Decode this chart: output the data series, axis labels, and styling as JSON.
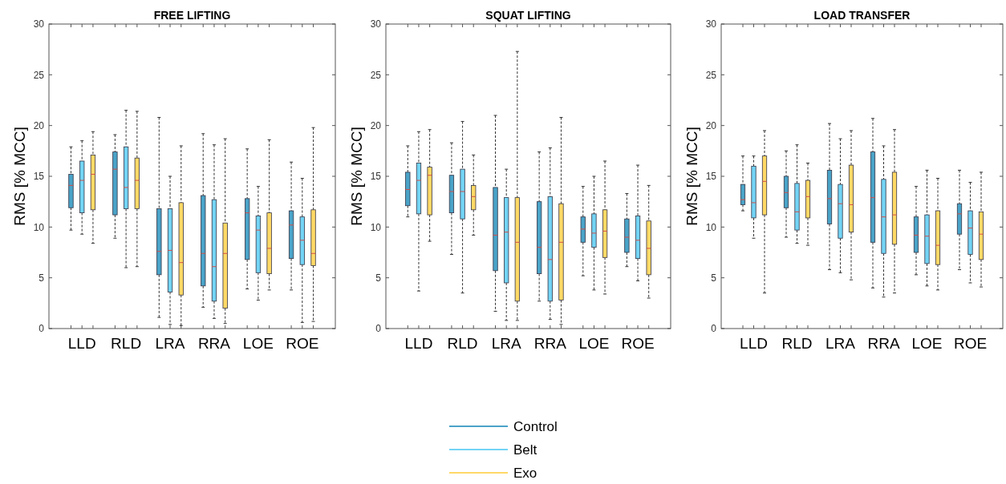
{
  "chart_data": [
    {
      "type": "box",
      "title": "FREE LIFTING",
      "ylabel": "RMS [% MCC]",
      "categories": [
        "LLD",
        "RLD",
        "LRA",
        "RRA",
        "LOE",
        "ROE"
      ],
      "ylim": [
        0,
        30
      ],
      "yticks": [
        0,
        5,
        10,
        15,
        20,
        25,
        30
      ],
      "grid": false,
      "legend": "bottom",
      "series": [
        {
          "name": "Control",
          "color": "#4aa3c8",
          "boxes": [
            {
              "low": 9.7,
              "q1": 11.9,
              "median": 14.1,
              "q3": 15.2,
              "high": 17.9
            },
            {
              "low": 8.9,
              "q1": 11.2,
              "median": 15.7,
              "q3": 17.4,
              "high": 19.1
            },
            {
              "low": 1.1,
              "q1": 5.3,
              "median": 7.6,
              "q3": 11.8,
              "high": 20.8
            },
            {
              "low": 2.1,
              "q1": 4.2,
              "median": 7.4,
              "q3": 13.1,
              "high": 19.2
            },
            {
              "low": 3.9,
              "q1": 6.8,
              "median": 11.4,
              "q3": 12.8,
              "high": 17.7
            },
            {
              "low": 3.8,
              "q1": 6.9,
              "median": 10.2,
              "q3": 11.6,
              "high": 16.4
            }
          ]
        },
        {
          "name": "Belt",
          "color": "#73d4f5",
          "boxes": [
            {
              "low": 9.3,
              "q1": 11.4,
              "median": 14.6,
              "q3": 16.5,
              "high": 18.5
            },
            {
              "low": 6.0,
              "q1": 11.8,
              "median": 13.9,
              "q3": 17.9,
              "high": 21.5
            },
            {
              "low": 0.4,
              "q1": 3.6,
              "median": 7.7,
              "q3": 11.8,
              "high": 15.0
            },
            {
              "low": 1.0,
              "q1": 2.7,
              "median": 6.1,
              "q3": 12.7,
              "high": 18.1
            },
            {
              "low": 2.8,
              "q1": 5.5,
              "median": 9.7,
              "q3": 11.1,
              "high": 14.0
            },
            {
              "low": 0.6,
              "q1": 6.3,
              "median": 8.7,
              "q3": 11.0,
              "high": 14.8
            }
          ]
        },
        {
          "name": "Exo",
          "color": "#ffd966",
          "boxes": [
            {
              "low": 8.4,
              "q1": 11.7,
              "median": 15.2,
              "q3": 17.1,
              "high": 19.4
            },
            {
              "low": 6.1,
              "q1": 11.8,
              "median": 14.6,
              "q3": 16.8,
              "high": 21.4
            },
            {
              "low": 0.3,
              "q1": 3.3,
              "median": 6.5,
              "q3": 12.4,
              "high": 18.0
            },
            {
              "low": 0.5,
              "q1": 2.0,
              "median": 7.4,
              "q3": 10.4,
              "high": 18.7
            },
            {
              "low": 3.8,
              "q1": 5.4,
              "median": 7.9,
              "q3": 11.4,
              "high": 18.6
            },
            {
              "low": 0.7,
              "q1": 6.2,
              "median": 7.4,
              "q3": 11.7,
              "high": 19.8
            }
          ]
        }
      ]
    },
    {
      "type": "box",
      "title": "SQUAT LIFTING",
      "ylabel": "RMS [% MCC]",
      "categories": [
        "LLD",
        "RLD",
        "LRA",
        "RRA",
        "LOE",
        "ROE"
      ],
      "ylim": [
        0,
        30
      ],
      "yticks": [
        0,
        5,
        10,
        15,
        20,
        25,
        30
      ],
      "grid": false,
      "series": [
        {
          "color": "#4aa3c8",
          "boxes": [
            {
              "low": 11.0,
              "q1": 12.1,
              "median": 13.7,
              "q3": 15.4,
              "high": 18.0
            },
            {
              "low": 7.3,
              "q1": 11.4,
              "median": 13.5,
              "q3": 15.1,
              "high": 18.3
            },
            {
              "low": 1.7,
              "q1": 5.7,
              "median": 9.2,
              "q3": 13.9,
              "high": 21.0
            },
            {
              "low": 2.7,
              "q1": 5.4,
              "median": 8.0,
              "q3": 12.5,
              "high": 17.4
            },
            {
              "low": 5.2,
              "q1": 8.5,
              "median": 9.8,
              "q3": 11.0,
              "high": 14.0
            },
            {
              "low": 6.1,
              "q1": 7.5,
              "median": 9.0,
              "q3": 10.8,
              "high": 13.3
            }
          ]
        },
        {
          "color": "#73d4f5",
          "boxes": [
            {
              "low": 3.7,
              "q1": 11.3,
              "median": 14.6,
              "q3": 16.3,
              "high": 19.4
            },
            {
              "low": 3.5,
              "q1": 10.8,
              "median": 13.5,
              "q3": 15.7,
              "high": 20.4
            },
            {
              "low": 0.8,
              "q1": 4.5,
              "median": 9.5,
              "q3": 12.9,
              "high": 15.7
            },
            {
              "low": 0.9,
              "q1": 2.7,
              "median": 6.8,
              "q3": 13.0,
              "high": 17.8
            },
            {
              "low": 3.8,
              "q1": 8.0,
              "median": 9.4,
              "q3": 11.3,
              "high": 15.0
            },
            {
              "low": 4.7,
              "q1": 6.9,
              "median": 8.7,
              "q3": 11.1,
              "high": 16.1
            }
          ]
        },
        {
          "color": "#ffd966",
          "boxes": [
            {
              "low": 8.6,
              "q1": 11.2,
              "median": 15.1,
              "q3": 15.9,
              "high": 19.6
            },
            {
              "low": 9.2,
              "q1": 11.7,
              "median": 13.0,
              "q3": 14.1,
              "high": 17.1
            },
            {
              "low": 0.8,
              "q1": 2.7,
              "median": 8.5,
              "q3": 12.9,
              "high": 27.3
            },
            {
              "low": 0.4,
              "q1": 2.8,
              "median": 8.5,
              "q3": 12.3,
              "high": 20.8
            },
            {
              "low": 3.4,
              "q1": 7.0,
              "median": 9.6,
              "q3": 11.7,
              "high": 16.5
            },
            {
              "low": 3.0,
              "q1": 5.3,
              "median": 7.9,
              "q3": 10.6,
              "high": 14.1
            }
          ]
        }
      ]
    },
    {
      "type": "box",
      "title": "LOAD TRANSFER",
      "ylabel": "RMS [% MCC]",
      "categories": [
        "LLD",
        "RLD",
        "LRA",
        "RRA",
        "LOE",
        "ROE"
      ],
      "ylim": [
        0,
        30
      ],
      "yticks": [
        0,
        5,
        10,
        15,
        20,
        25,
        30
      ],
      "grid": false,
      "series": [
        {
          "color": "#4aa3c8",
          "boxes": [
            {
              "low": 11.6,
              "q1": 12.2,
              "median": 12.7,
              "q3": 14.2,
              "high": 17.0
            },
            {
              "low": 9.0,
              "q1": 11.9,
              "median": 13.4,
              "q3": 15.0,
              "high": 17.5
            },
            {
              "low": 5.8,
              "q1": 10.3,
              "median": 12.8,
              "q3": 15.6,
              "high": 20.2
            },
            {
              "low": 4.0,
              "q1": 8.5,
              "median": 12.9,
              "q3": 17.4,
              "high": 20.7
            },
            {
              "low": 5.3,
              "q1": 7.5,
              "median": 9.2,
              "q3": 11.0,
              "high": 14.0
            },
            {
              "low": 5.8,
              "q1": 9.3,
              "median": 11.3,
              "q3": 12.3,
              "high": 15.6
            }
          ]
        },
        {
          "color": "#73d4f5",
          "boxes": [
            {
              "low": 8.9,
              "q1": 10.9,
              "median": 12.4,
              "q3": 16.0,
              "high": 17.0
            },
            {
              "low": 8.4,
              "q1": 9.7,
              "median": 11.5,
              "q3": 14.3,
              "high": 18.1
            },
            {
              "low": 5.5,
              "q1": 8.9,
              "median": 12.3,
              "q3": 14.2,
              "high": 18.7
            },
            {
              "low": 3.1,
              "q1": 7.4,
              "median": 11.0,
              "q3": 14.7,
              "high": 18.0
            },
            {
              "low": 4.2,
              "q1": 6.4,
              "median": 9.1,
              "q3": 11.2,
              "high": 15.6
            },
            {
              "low": 4.5,
              "q1": 7.3,
              "median": 9.9,
              "q3": 11.6,
              "high": 14.4
            }
          ]
        },
        {
          "color": "#ffd966",
          "boxes": [
            {
              "low": 3.5,
              "q1": 11.2,
              "median": 14.5,
              "q3": 17.0,
              "high": 19.5
            },
            {
              "low": 8.2,
              "q1": 10.9,
              "median": 13.0,
              "q3": 14.6,
              "high": 16.3
            },
            {
              "low": 4.8,
              "q1": 9.5,
              "median": 12.2,
              "q3": 16.1,
              "high": 19.5
            },
            {
              "low": 3.5,
              "q1": 8.3,
              "median": 11.2,
              "q3": 15.4,
              "high": 19.6
            },
            {
              "low": 3.8,
              "q1": 6.3,
              "median": 8.2,
              "q3": 11.6,
              "high": 14.8
            },
            {
              "low": 4.1,
              "q1": 6.8,
              "median": 9.3,
              "q3": 11.5,
              "high": 15.4
            }
          ]
        }
      ]
    }
  ]
}
